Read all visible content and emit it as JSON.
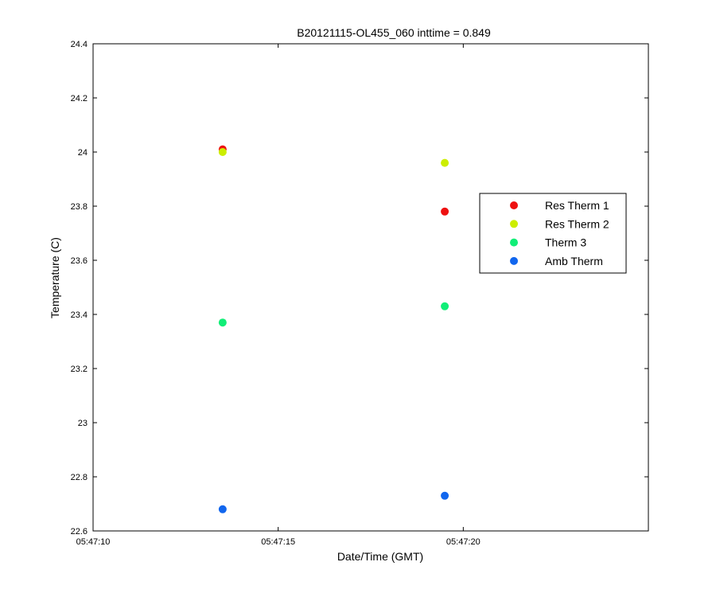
{
  "chart_data": {
    "type": "scatter",
    "title": "B20121115-OL455_060 inttime = 0.849",
    "xlabel": "Date/Time (GMT)",
    "ylabel": "Temperature (C)",
    "xlim": [
      "05:47:10",
      "05:47:25"
    ],
    "ylim": [
      22.6,
      24.4
    ],
    "x_ticks": [
      "05:47:10",
      "05:47:15",
      "05:47:20"
    ],
    "y_ticks": [
      "22.6",
      "22.8",
      "23",
      "23.2",
      "23.4",
      "23.6",
      "23.8",
      "24",
      "24.2",
      "24.4"
    ],
    "grid": false,
    "legend_position": "right",
    "series": [
      {
        "name": "Res Therm 1",
        "color": "#ee1111",
        "points": [
          {
            "x": "05:47:13.5",
            "y": 24.01
          },
          {
            "x": "05:47:19.5",
            "y": 23.78
          }
        ]
      },
      {
        "name": "Res Therm 2",
        "color": "#ccee00",
        "points": [
          {
            "x": "05:47:13.5",
            "y": 24.0
          },
          {
            "x": "05:47:19.5",
            "y": 23.96
          }
        ]
      },
      {
        "name": "Therm 3",
        "color": "#11ee77",
        "points": [
          {
            "x": "05:47:13.5",
            "y": 23.37
          },
          {
            "x": "05:47:19.5",
            "y": 23.43
          }
        ]
      },
      {
        "name": "Amb Therm",
        "color": "#1166ee",
        "points": [
          {
            "x": "05:47:13.5",
            "y": 22.68
          },
          {
            "x": "05:47:19.5",
            "y": 22.73
          }
        ]
      }
    ]
  }
}
